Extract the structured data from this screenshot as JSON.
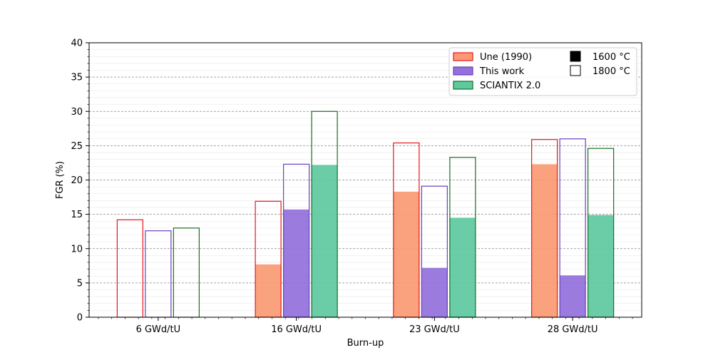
{
  "chart_data": {
    "type": "bar",
    "xlabel": "Burn-up",
    "ylabel": "FGR (%)",
    "ylim": [
      0,
      40
    ],
    "yticks": [
      0,
      5,
      10,
      15,
      20,
      25,
      30,
      35,
      40
    ],
    "grid": "major horizontal dashed, minor horizontal faint",
    "legend_placement": "top-right",
    "categories": [
      "6 GWd/tU",
      "16 GWd/tU",
      "23 GWd/tU",
      "28 GWd/tU"
    ],
    "temperature_legend": [
      {
        "label": "1600 °C",
        "style": "filled"
      },
      {
        "label": "1800 °C",
        "style": "outline"
      }
    ],
    "series": [
      {
        "name": "Une (1990)",
        "fill": "#fa9a73",
        "edge": "#e8141b",
        "values_1600C": [
          0,
          7.7,
          18.3,
          22.3
        ],
        "values_1800C": [
          14.2,
          16.9,
          25.4,
          25.9
        ]
      },
      {
        "name": "This work",
        "fill": "#9370db",
        "edge": "#6a3fbf",
        "values_1600C": [
          0,
          15.7,
          7.2,
          6.1
        ],
        "values_1800C": [
          12.6,
          22.3,
          19.1,
          26.0
        ]
      },
      {
        "name": "SCIANTIX 2.0",
        "fill": "#5ec9a0",
        "edge": "#17701f",
        "values_1600C": [
          0,
          22.2,
          14.5,
          14.9
        ],
        "values_1800C": [
          13.0,
          30.0,
          23.3,
          24.6
        ]
      }
    ]
  }
}
